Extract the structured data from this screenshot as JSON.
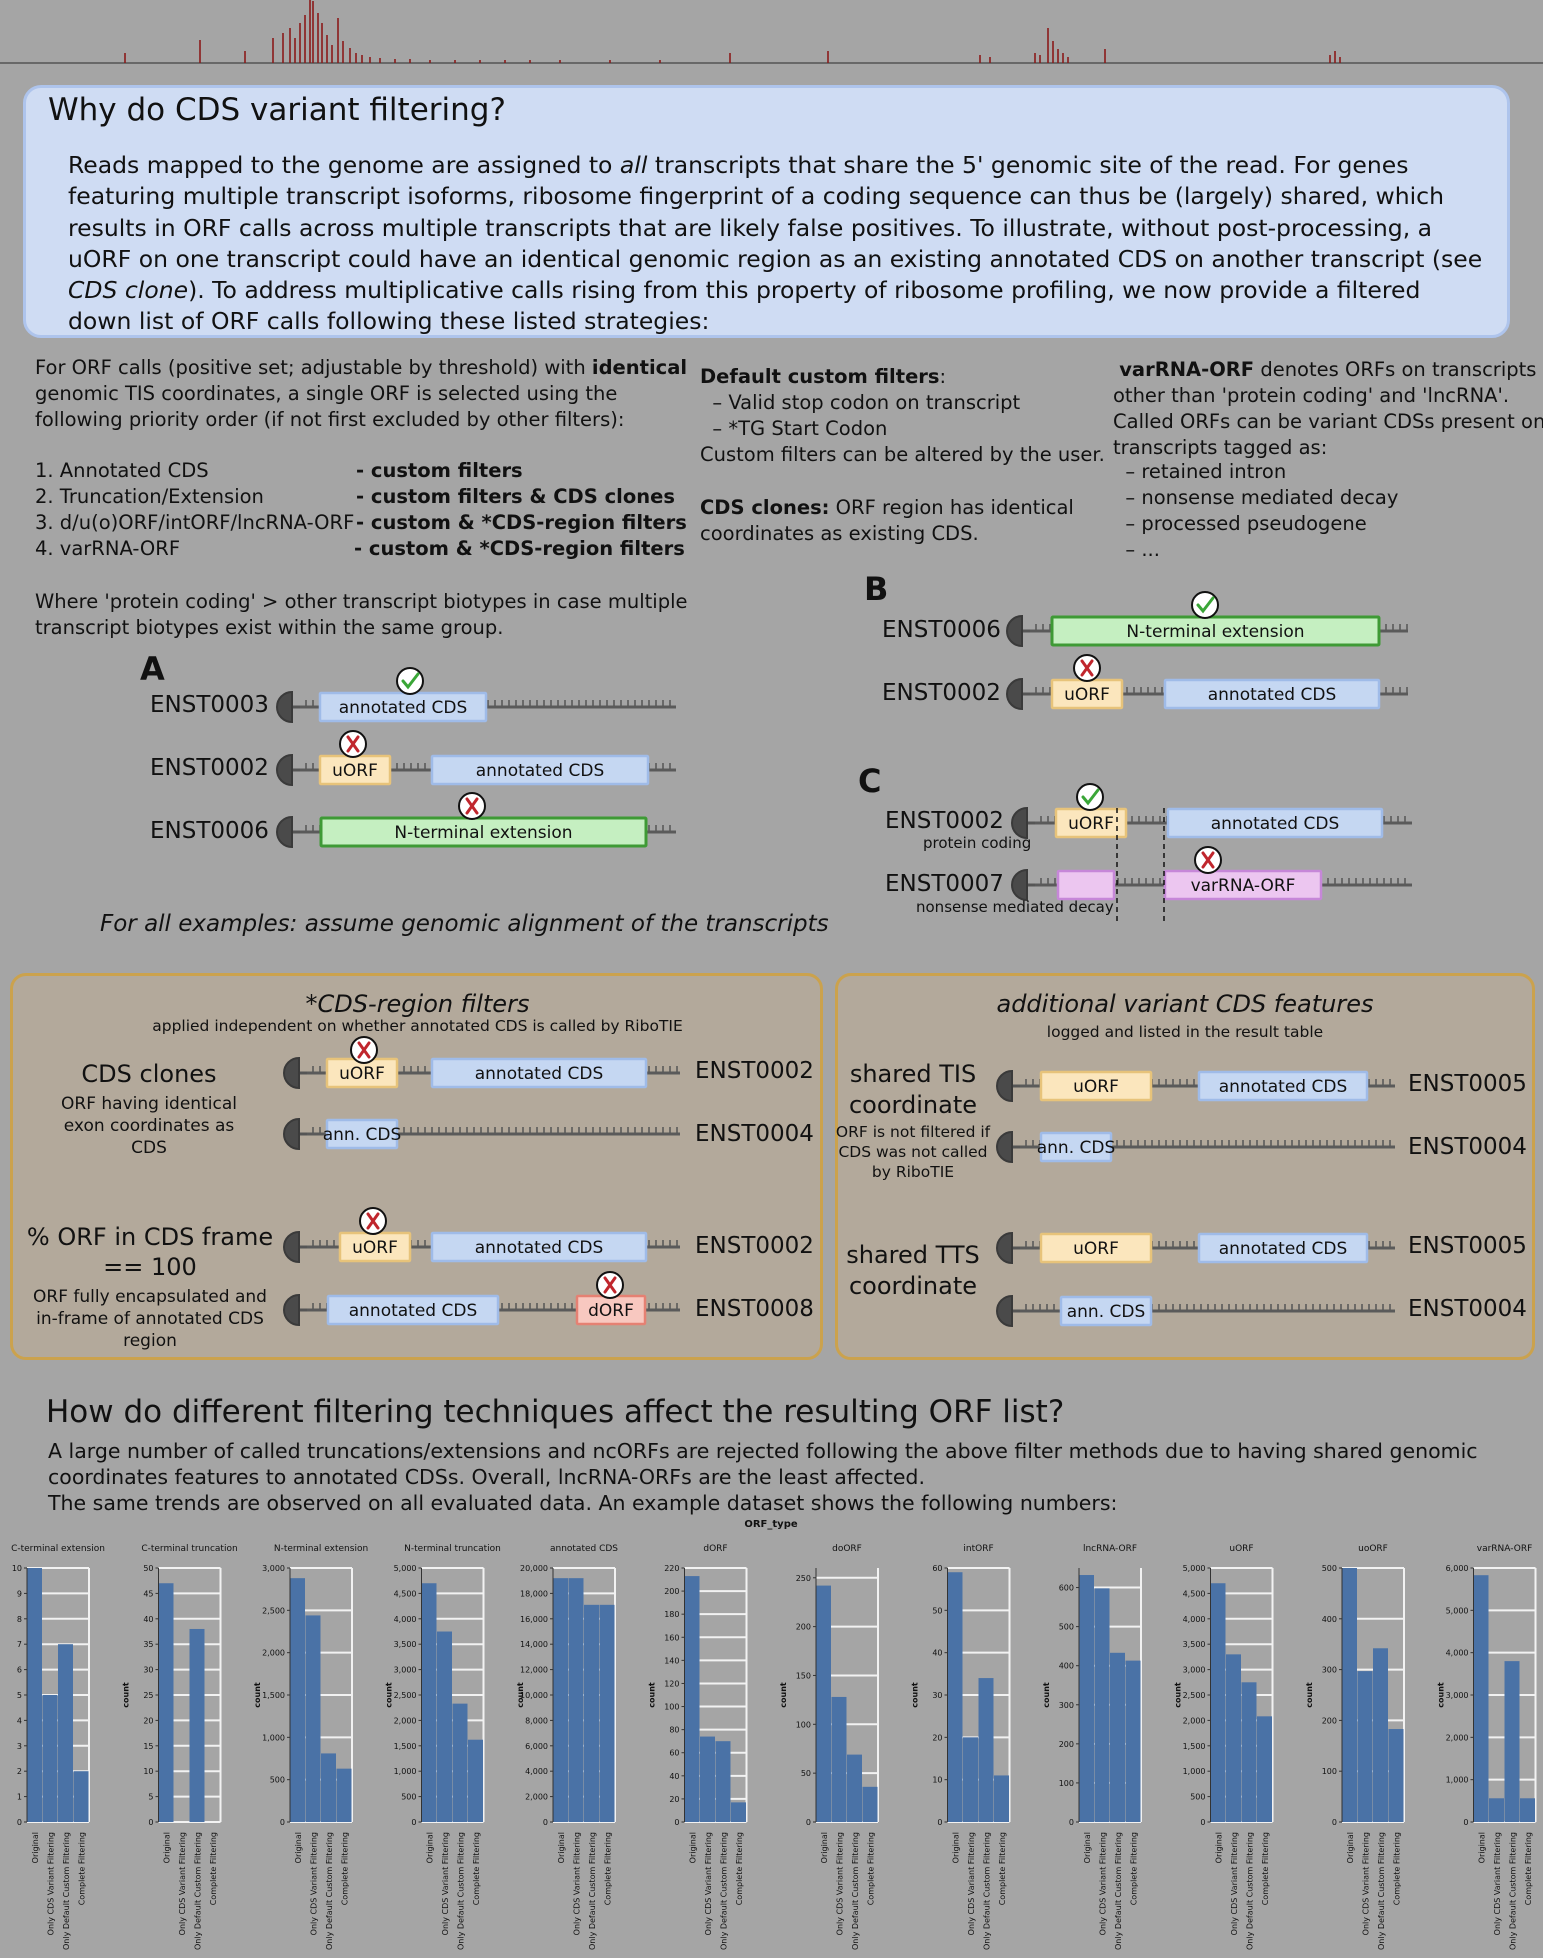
{
  "header": {
    "title": "Why do CDS variant filtering?",
    "p1": "Reads mapped to the genome are assigned to ",
    "p1_em": "all",
    "p2": " transcripts that share the 5' genomic site of the read. For genes featuring multiple transcript isoforms, ribosome fingerprint of a coding sequence can thus be (largely) shared, which results in ORF calls across multiple transcripts that are likely false positives. To illustrate, without post-processing, a uORF on one transcript could have an identical genomic region as an existing annotated CDS on another transcript (see ",
    "p2_em": "CDS clone",
    "p3": "). To address multiplicative calls rising from this property of ribosome profiling, we now provide a filtered down list of ORF calls following these listed strategies:"
  },
  "priority": {
    "intro_a": "For ORF calls (positive set; adjustable by threshold) with ",
    "intro_b": "identical",
    "intro_c": "genomic TIS coordinates, a single ORF is selected using the\nfollowing priority order (if not first excluded by other filters):",
    "items": [
      {
        "label": "1. Annotated CDS",
        "filter": "- custom filters"
      },
      {
        "label": "2. Truncation/Extension",
        "filter": "- custom filters & CDS clones"
      },
      {
        "label": "3. d/u(o)ORF/intORF/lncRNA-ORF",
        "filter": "- custom & *CDS-region filters"
      },
      {
        "label": "4. varRNA-ORF",
        "filter": "- custom & *CDS-region filters"
      }
    ],
    "note": "Where 'protein coding' > other transcript biotypes in case multiple\ntranscript biotypes exist within the same group."
  },
  "defaults": {
    "title": "Default custom filters",
    "colon": ":",
    "items": [
      "  – Valid stop codon on transcript",
      "  – *TG Start Codon"
    ],
    "alter": "Custom filters can be altered by the user.",
    "clones_title": "CDS clones:",
    "clones_text": " ORF region has identical\ncoordinates as existing CDS."
  },
  "varrna": {
    "title": "varRNA-ORF",
    "text": " denotes ORFs on transcripts\nother than 'protein coding' and 'lncRNA'.\nCalled ORFs can be variant CDSs present on\ntranscripts tagged as:",
    "items": [
      "  – retained intron",
      "  – nonsense mediated decay",
      "  – processed pseudogene",
      "  – ..."
    ]
  },
  "panels": {
    "A": {
      "label": "A",
      "ids": [
        "ENST0003",
        "ENST0002",
        "ENST0006"
      ],
      "boxes": [
        "annotated CDS",
        "uORF",
        "annotated CDS",
        "N-terminal extension"
      ]
    },
    "B": {
      "label": "B",
      "ids": [
        "ENST0006",
        "ENST0002"
      ],
      "boxes": [
        "N-terminal extension",
        "uORF",
        "annotated CDS"
      ]
    },
    "C": {
      "label": "C",
      "ids": [
        "ENST0002",
        "ENST0007"
      ],
      "captions": [
        "protein coding",
        "nonsense mediated decay"
      ],
      "boxes": [
        "uORF",
        "annotated CDS",
        "varRNA-ORF"
      ]
    },
    "note": "For all examples: assume genomic alignment of the transcripts"
  },
  "cds_filters": {
    "title": "*CDS-region filters",
    "subtitle": "applied independent on whether annotated CDS is called by RiboTIE",
    "clones_label": "CDS clones",
    "clones_desc": "ORF having identical\nexon coordinates as\nCDS",
    "frame_label": "% ORF in CDS frame\n== 100",
    "frame_desc": "ORF fully encapsulated and\nin-frame of annotated CDS\nregion",
    "ids": [
      "ENST0002",
      "ENST0004",
      "ENST0002",
      "ENST0008"
    ],
    "boxes": [
      "uORF",
      "annotated CDS",
      "ann. CDS",
      "uORF",
      "annotated CDS",
      "annotated CDS",
      "dORF"
    ]
  },
  "variant_features": {
    "title": "additional variant CDS features",
    "subtitle": "logged and listed in the result table",
    "tis_label": "shared TIS\ncoordinate",
    "tis_desc": "ORF is not filtered if\nCDS was not called\nby RiboTIE",
    "tts_label": "shared TTS\ncoordinate",
    "ids": [
      "ENST0005",
      "ENST0004",
      "ENST0005",
      "ENST0004"
    ],
    "boxes": [
      "uORF",
      "annotated CDS",
      "ann. CDS",
      "uORF",
      "annotated CDS",
      "ann. CDS"
    ]
  },
  "results": {
    "title": "How do different filtering techniques affect the resulting ORF list?",
    "text": "A large number of called truncations/extensions and ncORFs are rejected following the above filter methods due to having shared genomic coordinates features to annotated CDSs. Overall, lncRNA-ORFs are the least affected.\nThe same trends are observed on all evaluated data. An example dataset shows the following numbers:"
  },
  "colors": {
    "bar": "#4a72a6",
    "peak": "#8b1a1a",
    "cds": "#c5d7f2",
    "uorf": "#fbe6bd",
    "ext": "#c5efc1",
    "dorf": "#f8c8c0",
    "varrna": "#ecc6f0"
  },
  "chart_data": {
    "type": "bar",
    "title": "ORF_type",
    "ylabel": "count",
    "categories": [
      "Original",
      "Only CDS Variant Filtering",
      "Only Default Custom Filtering",
      "Complete Filtering"
    ],
    "panels": [
      {
        "name": "C-terminal extension",
        "values": [
          10,
          5,
          7,
          2
        ],
        "ylim": [
          0,
          10
        ],
        "ticks": [
          0,
          1,
          2,
          3,
          4,
          5,
          6,
          7,
          8,
          9,
          10
        ]
      },
      {
        "name": "C-terminal truncation",
        "values": [
          47,
          0,
          38,
          0
        ],
        "ylim": [
          0,
          50
        ],
        "ticks": [
          0,
          5,
          10,
          15,
          20,
          25,
          30,
          35,
          40,
          45,
          50
        ]
      },
      {
        "name": "N-terminal extension",
        "values": [
          2880,
          2440,
          810,
          630
        ],
        "ylim": [
          0,
          3000
        ],
        "ticks": [
          0,
          500,
          1000,
          1500,
          2000,
          2500,
          3000
        ]
      },
      {
        "name": "N-terminal truncation",
        "values": [
          4700,
          3750,
          2330,
          1620
        ],
        "ylim": [
          0,
          5000
        ],
        "ticks": [
          0,
          500,
          1000,
          1500,
          2000,
          2500,
          3000,
          3500,
          4000,
          4500,
          5000
        ]
      },
      {
        "name": "annotated CDS",
        "values": [
          19200,
          19200,
          17100,
          17100
        ],
        "ylim": [
          0,
          20000
        ],
        "ticks": [
          0,
          2000,
          4000,
          6000,
          8000,
          10000,
          12000,
          14000,
          16000,
          18000,
          20000
        ]
      },
      {
        "name": "dORF",
        "values": [
          213,
          74,
          70,
          17
        ],
        "ylim": [
          0,
          220
        ],
        "ticks": [
          0,
          20,
          40,
          60,
          80,
          100,
          120,
          140,
          160,
          180,
          200,
          220
        ]
      },
      {
        "name": "doORF",
        "values": [
          242,
          128,
          69,
          36
        ],
        "ylim": [
          0,
          260
        ],
        "ticks": [
          0,
          50,
          100,
          150,
          200,
          250
        ]
      },
      {
        "name": "intORF",
        "values": [
          59,
          20,
          34,
          11
        ],
        "ylim": [
          0,
          60
        ],
        "ticks": [
          0,
          10,
          20,
          30,
          40,
          50,
          60
        ]
      },
      {
        "name": "lncRNA-ORF",
        "values": [
          632,
          598,
          433,
          413
        ],
        "ylim": [
          0,
          650
        ],
        "ticks": [
          0,
          100,
          200,
          300,
          400,
          500,
          600
        ]
      },
      {
        "name": "uORF",
        "values": [
          4700,
          3300,
          2750,
          2080
        ],
        "ylim": [
          0,
          5000
        ],
        "ticks": [
          0,
          500,
          1000,
          1500,
          2000,
          2500,
          3000,
          3500,
          4000,
          4500,
          5000
        ]
      },
      {
        "name": "uoORF",
        "values": [
          500,
          297,
          342,
          183
        ],
        "ylim": [
          0,
          500
        ],
        "ticks": [
          0,
          100,
          200,
          300,
          400,
          500
        ]
      },
      {
        "name": "varRNA-ORF",
        "values": [
          5830,
          560,
          3800,
          560
        ],
        "ylim": [
          0,
          6000
        ],
        "ticks": [
          0,
          1000,
          2000,
          3000,
          4000,
          5000,
          6000
        ]
      }
    ]
  }
}
